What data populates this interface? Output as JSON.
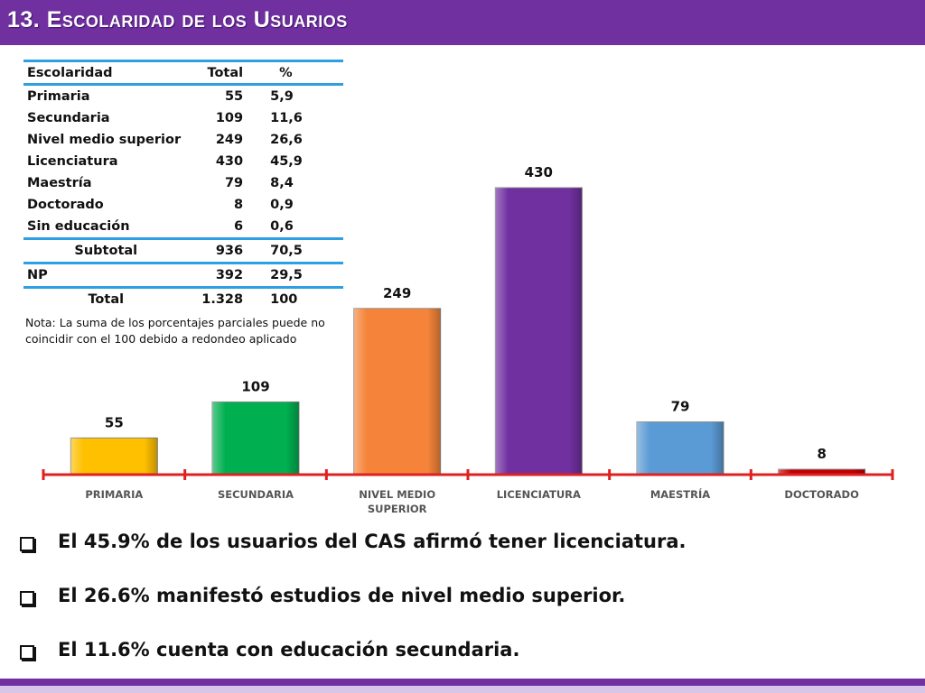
{
  "header": {
    "title": "13. Escolaridad de los Usuarios"
  },
  "table": {
    "headers": [
      "Escolaridad",
      "Total",
      "%"
    ],
    "rows": [
      [
        "Primaria",
        "55",
        "5,9"
      ],
      [
        "Secundaria",
        "109",
        "11,6"
      ],
      [
        "Nivel medio superior",
        "249",
        "26,6"
      ],
      [
        "Licenciatura",
        "430",
        "45,9"
      ],
      [
        "Maestría",
        "79",
        "8,4"
      ],
      [
        "Doctorado",
        "8",
        "0,9"
      ],
      [
        "Sin educación",
        "6",
        "0,6"
      ]
    ],
    "subtotal": [
      "Subtotal",
      "936",
      "70,5"
    ],
    "np": [
      "NP",
      "392",
      "29,5"
    ],
    "total": [
      "Total",
      "1.328",
      "100"
    ],
    "border_color": "#2e9fe0"
  },
  "note": "Nota: La suma de los porcentajes parciales puede no coincidir con el 100 debido a redondeo aplicado",
  "chart_data": {
    "type": "bar",
    "categories": [
      "PRIMARIA",
      "SECUNDARIA",
      "NIVEL MEDIO SUPERIOR",
      "LICENCIATURA",
      "MAESTRÍA",
      "DOCTORADO"
    ],
    "category_lines": [
      [
        "PRIMARIA"
      ],
      [
        "SECUNDARIA"
      ],
      [
        "NIVEL MEDIO",
        "SUPERIOR"
      ],
      [
        "LICENCIATURA"
      ],
      [
        "MAESTRÍA"
      ],
      [
        "DOCTORADO"
      ]
    ],
    "values": [
      55,
      109,
      249,
      430,
      79,
      8
    ],
    "colors": [
      "#ffc000",
      "#00b050",
      "#f5843a",
      "#7030a0",
      "#5b9bd5",
      "#c00000"
    ],
    "axis_color": "#e02020",
    "data_labels": true,
    "title": "",
    "xlabel": "",
    "ylabel": ""
  },
  "bullets": [
    "El 45.9% de los usuarios del CAS afirmó tener licenciatura.",
    "El 26.6% manifestó estudios de nivel medio superior.",
    "El 11.6% cuenta con educación secundaria."
  ],
  "theme": {
    "accent": "#7030a0",
    "text": "#111111"
  }
}
